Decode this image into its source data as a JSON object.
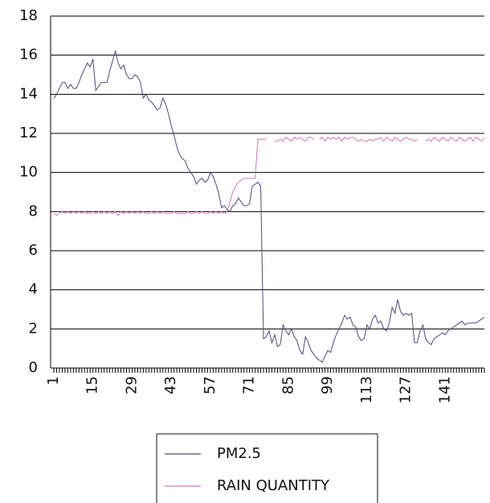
{
  "chart_data": {
    "type": "line",
    "categories": [
      "1",
      null,
      null,
      null,
      null,
      null,
      null,
      null,
      null,
      null,
      null,
      null,
      null,
      null,
      "15",
      null,
      null,
      null,
      null,
      null,
      null,
      null,
      null,
      null,
      null,
      null,
      null,
      null,
      "29",
      null,
      null,
      null,
      null,
      null,
      null,
      null,
      null,
      null,
      null,
      null,
      null,
      null,
      "43",
      null,
      null,
      null,
      null,
      null,
      null,
      null,
      null,
      null,
      null,
      null,
      null,
      null,
      "57",
      null,
      null,
      null,
      null,
      null,
      null,
      null,
      null,
      null,
      null,
      null,
      null,
      null,
      "71",
      null,
      null,
      null,
      null,
      null,
      null,
      null,
      null,
      null,
      null,
      null,
      null,
      null,
      "85",
      null,
      null,
      null,
      null,
      null,
      null,
      null,
      null,
      null,
      null,
      null,
      null,
      null,
      "99",
      null,
      null,
      null,
      null,
      null,
      null,
      null,
      null,
      null,
      null,
      null,
      null,
      null,
      "113",
      null,
      null,
      null,
      null,
      null,
      null,
      null,
      null,
      null,
      null,
      null,
      null,
      null,
      "127",
      null,
      null,
      null,
      null,
      null,
      null,
      null,
      null,
      null,
      null,
      null,
      null,
      null,
      "141",
      null,
      null,
      null,
      null,
      null,
      null,
      null,
      null,
      null,
      null,
      null,
      null,
      null,
      null
    ],
    "series": [
      {
        "name": "PM2.5",
        "color": "#4a4a7c",
        "values": [
          13.8,
          14.0,
          14.3,
          14.6,
          14.6,
          14.3,
          14.5,
          14.3,
          14.3,
          14.6,
          15.0,
          15.3,
          15.6,
          15.4,
          15.8,
          14.2,
          14.4,
          14.6,
          14.6,
          14.6,
          15.2,
          15.7,
          16.2,
          15.6,
          15.3,
          15.5,
          15.0,
          14.8,
          14.8,
          15.0,
          14.9,
          14.6,
          13.8,
          14.0,
          13.7,
          13.6,
          13.4,
          13.2,
          13.3,
          13.8,
          13.5,
          13.0,
          12.4,
          11.9,
          11.3,
          10.9,
          10.7,
          10.6,
          10.2,
          10.0,
          9.8,
          9.4,
          9.6,
          9.7,
          9.5,
          9.6,
          10.0,
          9.8,
          9.4,
          8.9,
          8.2,
          8.3,
          8.1,
          8.0,
          8.3,
          8.4,
          8.7,
          8.5,
          8.3,
          8.3,
          8.4,
          9.3,
          9.4,
          9.5,
          9.3,
          1.5,
          1.6,
          1.9,
          1.3,
          1.7,
          1.1,
          1.2,
          2.2,
          1.9,
          1.7,
          2.0,
          1.6,
          1.4,
          0.9,
          0.7,
          1.6,
          1.3,
          0.9,
          0.7,
          0.5,
          0.4,
          0.3,
          0.6,
          0.9,
          0.8,
          1.3,
          1.7,
          2.0,
          2.3,
          2.7,
          2.5,
          2.6,
          2.2,
          2.1,
          1.6,
          1.4,
          1.5,
          2.2,
          2.0,
          2.5,
          2.7,
          2.3,
          2.4,
          2.0,
          1.9,
          2.3,
          3.1,
          2.8,
          3.5,
          2.9,
          2.7,
          2.8,
          2.7,
          2.8,
          1.3,
          1.3,
          1.9,
          2.2,
          1.5,
          1.3,
          1.2,
          1.5,
          1.6,
          1.7,
          1.8,
          1.7,
          1.9,
          2.0,
          2.1,
          2.2,
          2.3,
          2.4,
          2.2,
          2.3,
          2.3,
          2.3,
          2.3,
          2.4,
          2.5,
          2.6
        ]
      },
      {
        "name": "RAIN QUANTITY",
        "color": "#d473b6",
        "values": [
          7.9,
          7.8,
          7.9,
          8.0,
          7.9,
          8.0,
          7.9,
          8.0,
          7.9,
          8.0,
          7.9,
          8.0,
          7.9,
          7.9,
          8.0,
          7.9,
          8.0,
          7.9,
          8.0,
          7.9,
          8.0,
          7.9,
          8.0,
          7.8,
          8.0,
          7.9,
          8.0,
          7.9,
          8.0,
          7.9,
          8.0,
          7.9,
          8.0,
          7.9,
          7.9,
          8.0,
          7.9,
          8.0,
          7.9,
          8.0,
          7.9,
          7.9,
          7.9,
          8.0,
          7.9,
          7.9,
          7.9,
          7.9,
          8.0,
          7.9,
          7.9,
          8.0,
          7.9,
          8.0,
          7.9,
          7.9,
          8.0,
          7.9,
          8.0,
          7.9,
          8.0,
          7.9,
          8.0,
          8.5,
          9.0,
          9.3,
          9.5,
          9.6,
          9.7,
          9.7,
          9.7,
          9.7,
          9.7,
          11.7,
          11.7,
          11.7,
          11.7,
          null,
          null,
          11.6,
          11.6,
          11.7,
          11.6,
          11.8,
          11.7,
          11.6,
          11.8,
          11.7,
          11.8,
          11.7,
          11.6,
          11.8,
          11.8,
          11.7,
          null,
          11.7,
          11.8,
          11.6,
          11.8,
          11.7,
          11.8,
          11.7,
          11.8,
          11.6,
          11.8,
          11.7,
          11.8,
          11.8,
          11.7,
          11.6,
          11.7,
          11.6,
          11.6,
          11.7,
          11.6,
          11.7,
          11.7,
          11.8,
          11.6,
          11.8,
          11.7,
          11.6,
          11.8,
          11.7,
          11.6,
          11.7,
          11.8,
          11.7,
          11.7,
          11.6,
          11.7,
          null,
          null,
          11.6,
          11.7,
          11.6,
          11.8,
          11.7,
          11.6,
          11.8,
          11.7,
          11.6,
          11.8,
          11.7,
          11.6,
          11.8,
          11.7,
          11.6,
          11.7,
          11.8,
          11.6,
          11.8,
          11.7,
          11.6,
          11.8
        ]
      }
    ],
    "ylim": [
      0,
      18
    ],
    "yticks": [
      0,
      2,
      4,
      6,
      8,
      10,
      12,
      14,
      16,
      18
    ],
    "grid": true,
    "legend": "bottom"
  }
}
